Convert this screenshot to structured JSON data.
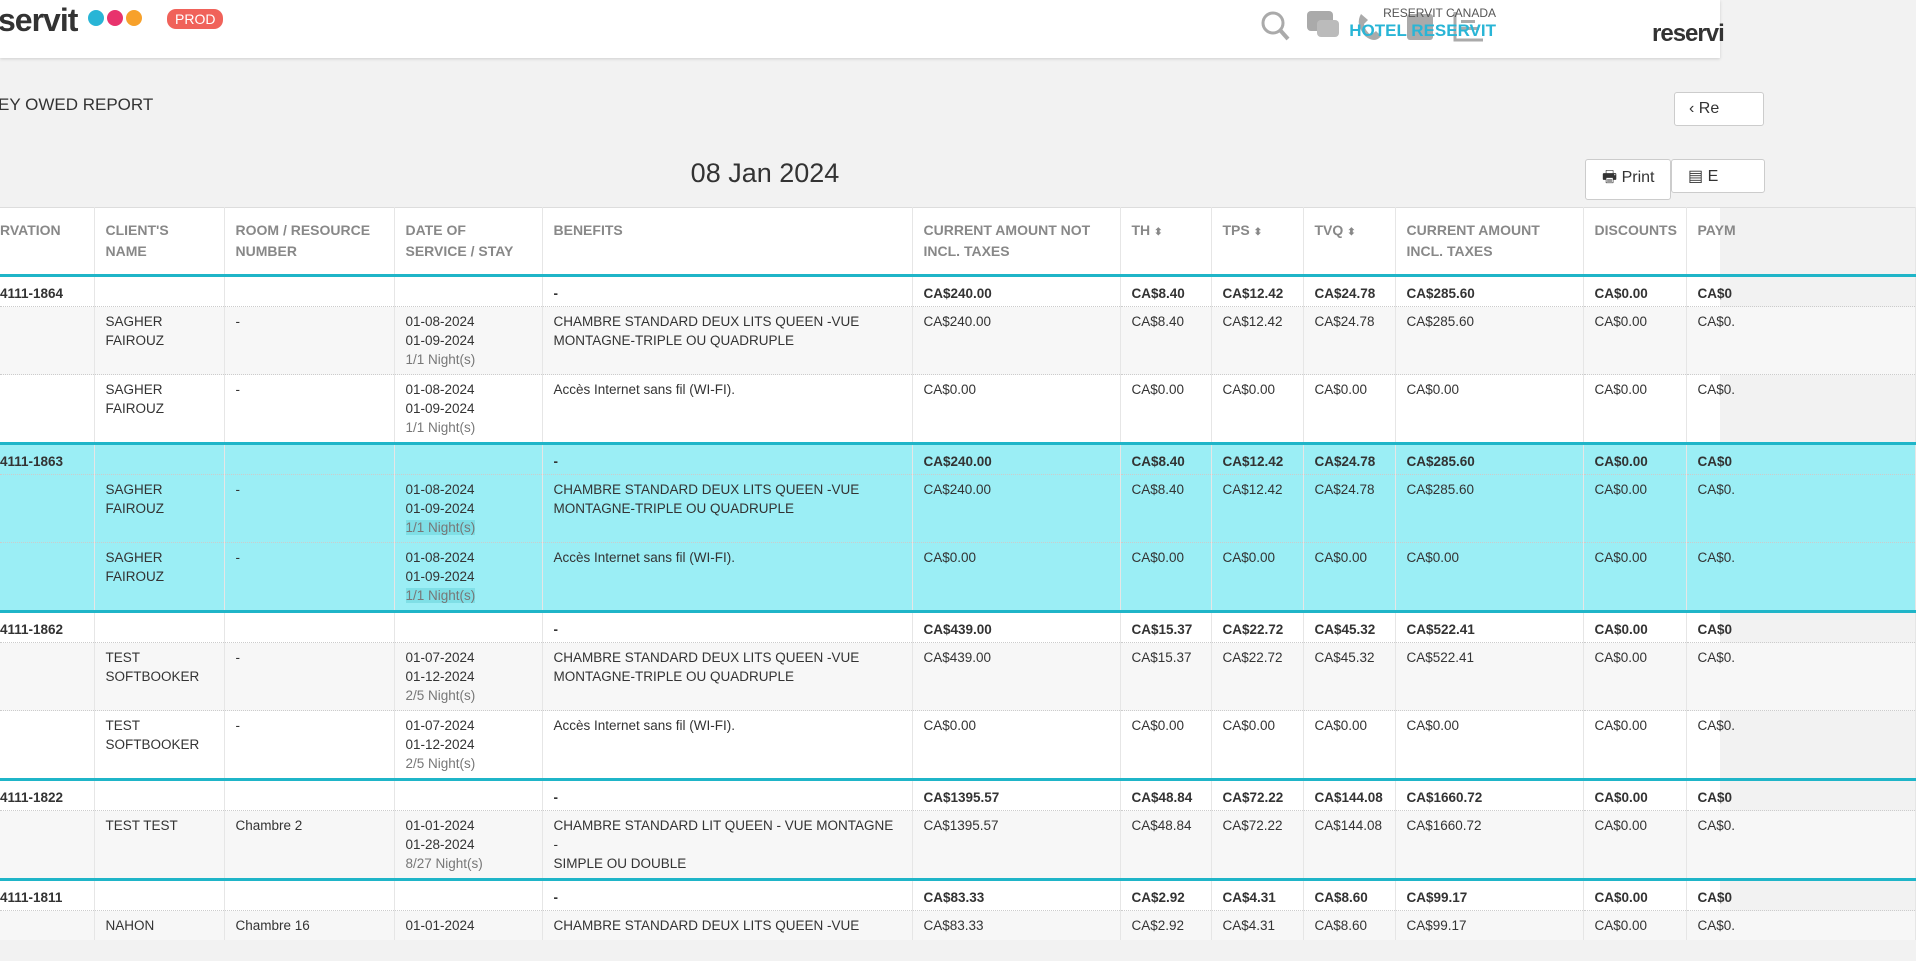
{
  "header": {
    "logo_left": "servit",
    "env_badge": "PROD",
    "account": "RESERVIT CANADA",
    "hotel": "HOTEL RESERVIT",
    "logo_right": "reservi"
  },
  "report": {
    "title": "EY OWED REPORT",
    "back_button": "Re",
    "date": "08 Jan 2024",
    "print_button": "Print",
    "export_button": "E"
  },
  "table": {
    "columns": [
      {
        "label": "RVATION"
      },
      {
        "label": "CLIENT'S NAME"
      },
      {
        "label": "ROOM / RESOURCE NUMBER"
      },
      {
        "label": "DATE OF SERVICE / STAY"
      },
      {
        "label": "BENEFITS"
      },
      {
        "label": "CURRENT AMOUNT NOT INCL. TAXES"
      },
      {
        "label": "TH",
        "sortable": true
      },
      {
        "label": "TPS",
        "sortable": true
      },
      {
        "label": "TVQ",
        "sortable": true
      },
      {
        "label": "CURRENT AMOUNT INCL. TAXES"
      },
      {
        "label": "DISCOUNTS"
      },
      {
        "label": "PAYM"
      }
    ],
    "groups": [
      {
        "highlighted": false,
        "summary": [
          "4111-1864",
          null,
          null,
          null,
          "-",
          "CA$240.00",
          "CA$8.40",
          "CA$12.42",
          "CA$24.78",
          "CA$285.60",
          "CA$0.00",
          "CA$0"
        ],
        "details": [
          [
            null,
            [
              "SAGHER",
              "FAIROUZ"
            ],
            "-",
            [
              "01-08-2024",
              "01-09-2024",
              "1/1 Night(s)"
            ],
            [
              "CHAMBRE STANDARD DEUX LITS QUEEN -VUE",
              "MONTAGNE-TRIPLE OU QUADRUPLE"
            ],
            "CA$240.00",
            "CA$8.40",
            "CA$12.42",
            "CA$24.78",
            "CA$285.60",
            "CA$0.00",
            "CA$0."
          ],
          [
            null,
            [
              "SAGHER",
              "FAIROUZ"
            ],
            "-",
            [
              "01-08-2024",
              "01-09-2024",
              "1/1 Night(s)"
            ],
            [
              "Accès Internet sans fil (WI-FI)."
            ],
            "CA$0.00",
            "CA$0.00",
            "CA$0.00",
            "CA$0.00",
            "CA$0.00",
            "CA$0.00",
            "CA$0."
          ]
        ]
      },
      {
        "highlighted": true,
        "summary": [
          "4111-1863",
          null,
          null,
          null,
          "-",
          "CA$240.00",
          "CA$8.40",
          "CA$12.42",
          "CA$24.78",
          "CA$285.60",
          "CA$0.00",
          "CA$0"
        ],
        "details": [
          [
            null,
            [
              "SAGHER",
              "FAIROUZ"
            ],
            "-",
            [
              "01-08-2024",
              "01-09-2024",
              "1/1 Night(s)"
            ],
            [
              "CHAMBRE STANDARD DEUX LITS QUEEN -VUE",
              "MONTAGNE-TRIPLE OU QUADRUPLE"
            ],
            "CA$240.00",
            "CA$8.40",
            "CA$12.42",
            "CA$24.78",
            "CA$285.60",
            "CA$0.00",
            "CA$0."
          ],
          [
            null,
            [
              "SAGHER",
              "FAIROUZ"
            ],
            "-",
            [
              "01-08-2024",
              "01-09-2024",
              "1/1 Night(s)"
            ],
            [
              "Accès Internet sans fil (WI-FI)."
            ],
            "CA$0.00",
            "CA$0.00",
            "CA$0.00",
            "CA$0.00",
            "CA$0.00",
            "CA$0.00",
            "CA$0."
          ]
        ]
      },
      {
        "highlighted": false,
        "summary": [
          "4111-1862",
          null,
          null,
          null,
          "-",
          "CA$439.00",
          "CA$15.37",
          "CA$22.72",
          "CA$45.32",
          "CA$522.41",
          "CA$0.00",
          "CA$0"
        ],
        "details": [
          [
            null,
            [
              "TEST",
              "SOFTBOOKER"
            ],
            "-",
            [
              "01-07-2024",
              "01-12-2024",
              "2/5 Night(s)"
            ],
            [
              "CHAMBRE STANDARD DEUX LITS QUEEN -VUE",
              "MONTAGNE-TRIPLE OU QUADRUPLE"
            ],
            "CA$439.00",
            "CA$15.37",
            "CA$22.72",
            "CA$45.32",
            "CA$522.41",
            "CA$0.00",
            "CA$0."
          ],
          [
            null,
            [
              "TEST",
              "SOFTBOOKER"
            ],
            "-",
            [
              "01-07-2024",
              "01-12-2024",
              "2/5 Night(s)"
            ],
            [
              "Accès Internet sans fil (WI-FI)."
            ],
            "CA$0.00",
            "CA$0.00",
            "CA$0.00",
            "CA$0.00",
            "CA$0.00",
            "CA$0.00",
            "CA$0."
          ]
        ]
      },
      {
        "highlighted": false,
        "summary": [
          "4111-1822",
          null,
          null,
          null,
          "-",
          "CA$1395.57",
          "CA$48.84",
          "CA$72.22",
          "CA$144.08",
          "CA$1660.72",
          "CA$0.00",
          "CA$0"
        ],
        "details": [
          [
            null,
            [
              "TEST TEST"
            ],
            "Chambre 2",
            [
              "01-01-2024",
              "01-28-2024",
              "8/27 Night(s)"
            ],
            [
              "CHAMBRE STANDARD LIT QUEEN - VUE MONTAGNE -",
              "SIMPLE OU DOUBLE"
            ],
            "CA$1395.57",
            "CA$48.84",
            "CA$72.22",
            "CA$144.08",
            "CA$1660.72",
            "CA$0.00",
            "CA$0."
          ]
        ]
      },
      {
        "highlighted": false,
        "summary": [
          "4111-1811",
          null,
          null,
          null,
          "-",
          "CA$83.33",
          "CA$2.92",
          "CA$4.31",
          "CA$8.60",
          "CA$99.17",
          "CA$0.00",
          "CA$0"
        ],
        "details": [
          [
            null,
            [
              "NAHON"
            ],
            "Chambre 16",
            [
              "01-01-2024"
            ],
            [
              "CHAMBRE STANDARD DEUX LITS QUEEN -VUE"
            ],
            "CA$83.33",
            "CA$2.92",
            "CA$4.31",
            "CA$8.60",
            "CA$99.17",
            "CA$0.00",
            "CA$0."
          ]
        ]
      }
    ]
  }
}
